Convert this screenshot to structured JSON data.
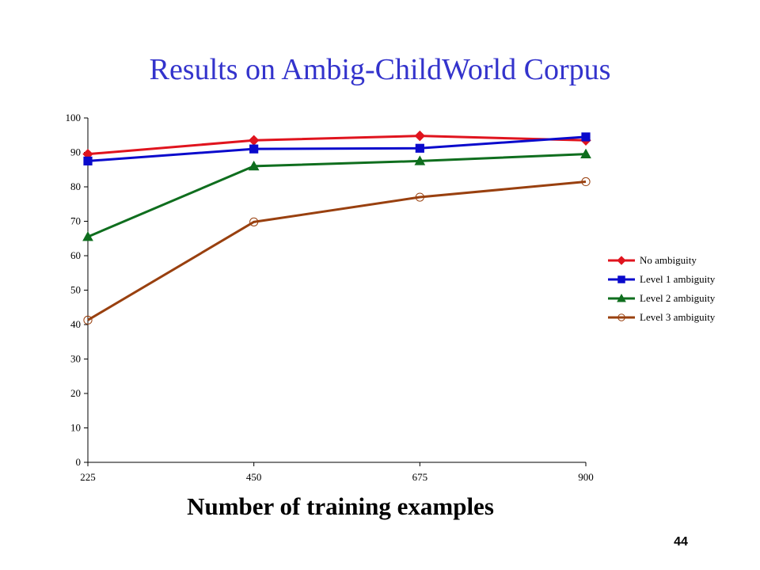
{
  "slide": {
    "title": "Results on Ambig-ChildWorld Corpus",
    "page_number": "44"
  },
  "chart_data": {
    "type": "line",
    "title": "",
    "xlabel": "Number of training examples",
    "ylabel": "",
    "x": [
      225,
      450,
      675,
      900
    ],
    "x_ticks": [
      "225",
      "450",
      "675",
      "900"
    ],
    "ylim": [
      0,
      100
    ],
    "y_ticks": [
      "0",
      "10",
      "20",
      "30",
      "40",
      "50",
      "60",
      "70",
      "80",
      "90",
      "100"
    ],
    "grid": false,
    "legend_position": "right",
    "series": [
      {
        "name": "No ambiguity",
        "values": [
          89.5,
          93.5,
          94.8,
          93.5
        ],
        "color": "#e0141e",
        "marker": "diamond"
      },
      {
        "name": "Level 1 ambiguity",
        "values": [
          87.5,
          91,
          91.2,
          94.5
        ],
        "color": "#0a0acc",
        "marker": "square"
      },
      {
        "name": "Level 2 ambiguity",
        "values": [
          65.5,
          86,
          87.5,
          89.5
        ],
        "color": "#0f6e1e",
        "marker": "triangle"
      },
      {
        "name": "Level 3 ambiguity",
        "values": [
          41.3,
          69.8,
          77,
          81.5
        ],
        "color": "#99400f",
        "marker": "circle-open"
      }
    ]
  }
}
